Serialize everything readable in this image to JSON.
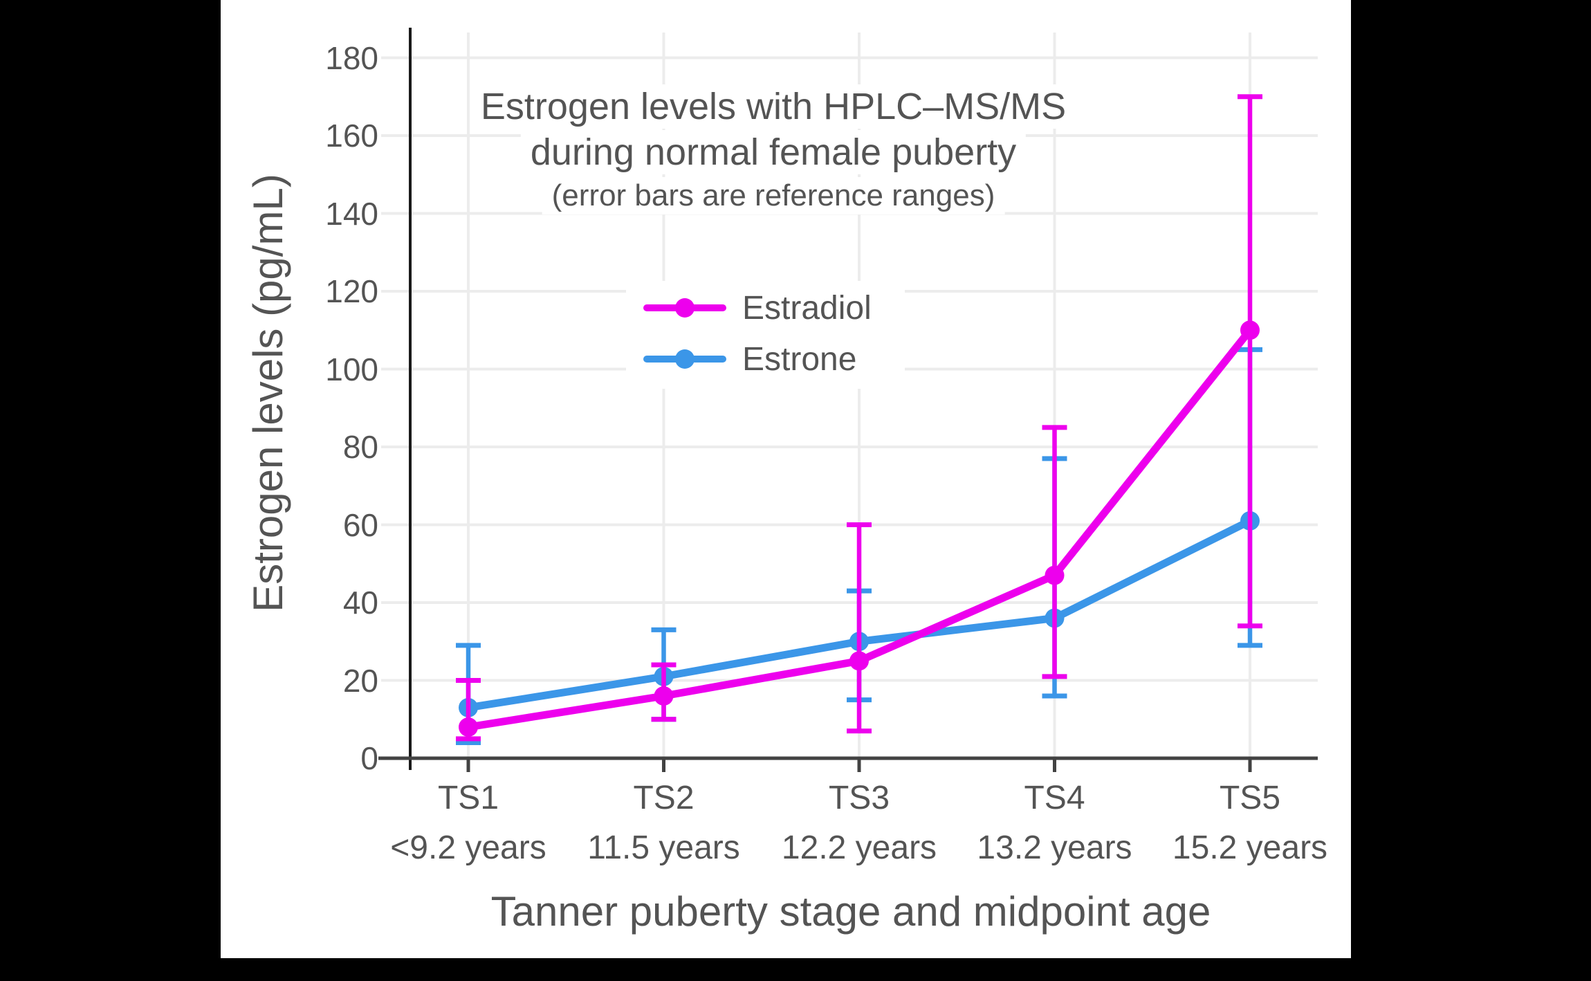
{
  "figure": {
    "background": "#000000",
    "canvas_background": "#ffffff",
    "text_color": "#545454",
    "gridline_color": "#ececec",
    "x_axis_color": "#424242",
    "y_axis_color": "#1a1a1a"
  },
  "chart_data": {
    "type": "line",
    "title": "Estrogen levels with HPLC–MS/MS",
    "title_line2": "during normal female puberty",
    "subtitle": "(error bars are reference ranges)",
    "xlabel": "Tanner puberty stage and midpoint age",
    "ylabel": "Estrogen levels (pg/mL)",
    "categories": [
      "TS1",
      "TS2",
      "TS3",
      "TS4",
      "TS5"
    ],
    "category_sublabels": [
      "<9.2 years",
      "11.5 years",
      "12.2 years",
      "13.2 years",
      "15.2 years"
    ],
    "yticks": [
      0,
      20,
      40,
      60,
      80,
      100,
      120,
      140,
      160,
      180
    ],
    "ylim": [
      0,
      190
    ],
    "grid": true,
    "legend_position": "inside-upper-center",
    "error_bar_meaning": "reference ranges",
    "series": [
      {
        "name": "Estradiol",
        "color": "#ed00ed",
        "values": [
          8,
          16,
          25,
          47,
          110
        ],
        "error_low": [
          5,
          10,
          7,
          21,
          34
        ],
        "error_high": [
          20,
          24,
          60,
          85,
          170
        ]
      },
      {
        "name": "Estrone",
        "color": "#3b96e8",
        "values": [
          13,
          21,
          30,
          36,
          61
        ],
        "error_low": [
          4,
          10,
          15,
          16,
          29
        ],
        "error_high": [
          29,
          33,
          43,
          77,
          105
        ]
      }
    ]
  }
}
